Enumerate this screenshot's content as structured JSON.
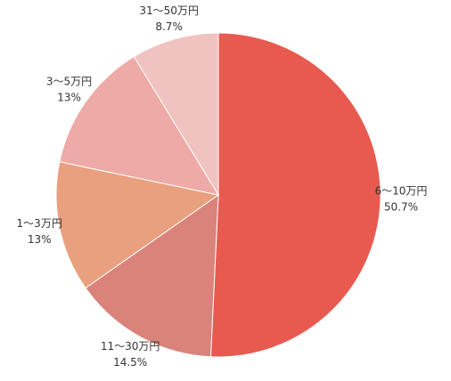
{
  "chart_data": {
    "type": "pie",
    "categories": [
      "6〜10万円",
      "11〜30万円",
      "1〜3万円",
      "3〜5万円",
      "31〜50万円"
    ],
    "values": [
      50.7,
      14.5,
      13,
      13,
      8.7
    ],
    "value_labels": [
      "50.7%",
      "14.5%",
      "13%",
      "13%",
      "8.7%"
    ],
    "colors": [
      "#e85a4f",
      "#d9837a",
      "#e9a07f",
      "#eeaaa6",
      "#f0c3c1"
    ]
  }
}
